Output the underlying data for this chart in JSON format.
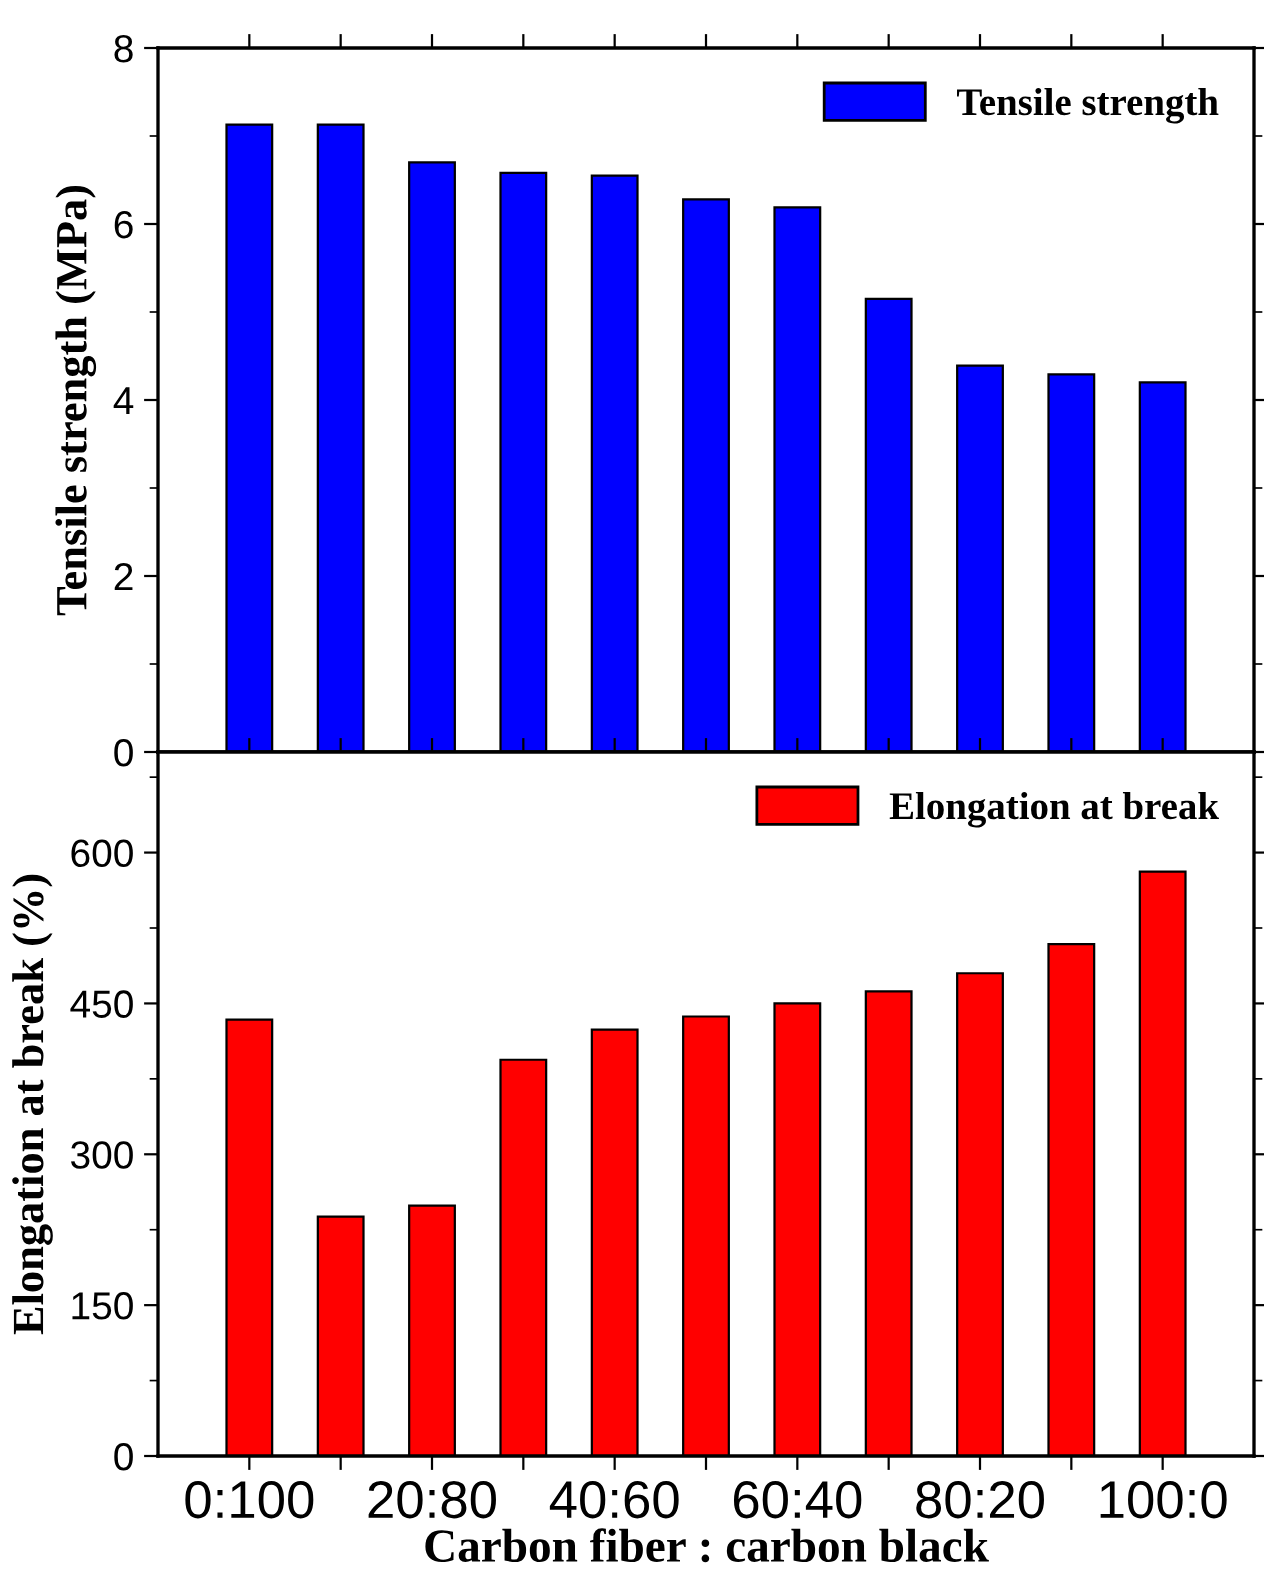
{
  "chart_data": [
    {
      "type": "bar",
      "ylabel": "Tensile strength (MPa)",
      "categories": [
        null,
        null,
        null,
        null,
        null,
        null,
        null,
        null,
        null,
        null,
        null
      ],
      "ylim": [
        0,
        8
      ],
      "yticks": [
        0,
        2,
        4,
        6,
        8
      ],
      "tick_labels": "y",
      "legend": "top right",
      "series": [
        {
          "name": "Tensile strength",
          "color": "#0000ff",
          "values": [
            7.13,
            7.13,
            6.7,
            6.58,
            6.55,
            6.28,
            6.19,
            5.15,
            4.39,
            4.29,
            4.2
          ]
        }
      ]
    },
    {
      "type": "bar",
      "xlabel": "Carbon fiber : carbon black",
      "ylabel": "Elongation at break (%)",
      "categories": [
        "0:100",
        null,
        "20:80",
        null,
        "40:60",
        null,
        "60:40",
        null,
        "80:20",
        null,
        "100:0"
      ],
      "ylim": [
        0,
        700
      ],
      "yticks": [
        0,
        150,
        300,
        450,
        600
      ],
      "legend": "top right",
      "series": [
        {
          "name": "Elongation at break",
          "color": "#ff0000",
          "values": [
            434,
            238,
            249,
            394,
            424,
            437,
            450,
            462,
            480,
            509,
            581
          ]
        }
      ]
    }
  ]
}
